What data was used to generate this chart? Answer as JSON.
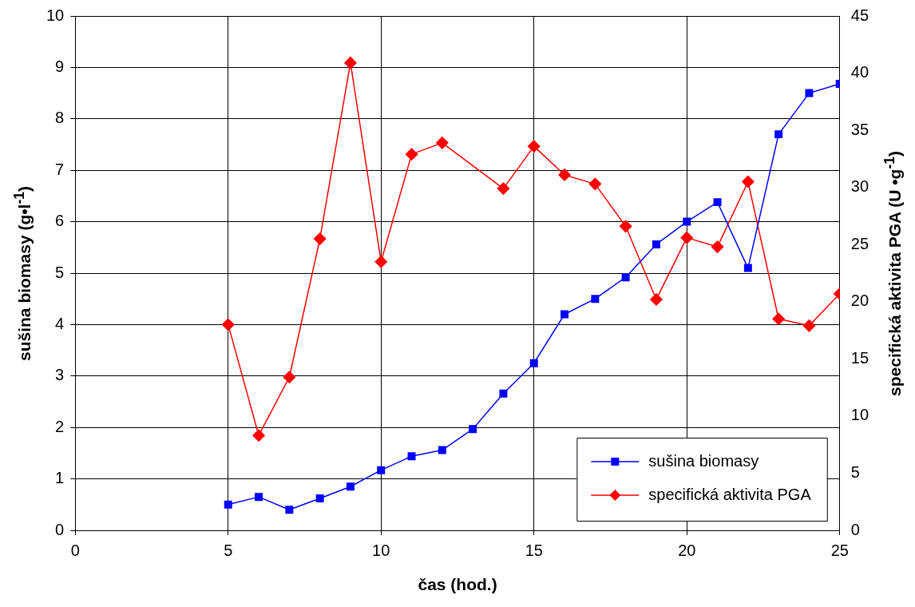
{
  "chart_data": {
    "type": "line",
    "xlabel": "čas (hod.)",
    "ylabel": "sušina biomasy (g•l$^{-1}$)",
    "y2label": "specifická aktivita PGA (U •g$^{-1}$)",
    "xlim": [
      0,
      25
    ],
    "xticks": [
      0,
      5,
      10,
      15,
      20,
      25
    ],
    "ylim": [
      0,
      10
    ],
    "yticks": [
      0,
      1,
      2,
      3,
      4,
      5,
      6,
      7,
      8,
      9,
      10
    ],
    "y2lim": [
      0,
      45
    ],
    "y2ticks": [
      0,
      5,
      10,
      15,
      20,
      25,
      30,
      35,
      40,
      45
    ],
    "grid": true,
    "legend": "bottom right",
    "line_style": "solid",
    "series": [
      {
        "name": "sušina biomasy",
        "color": "#0000ff",
        "marker": "square",
        "x": [
          5,
          6,
          7,
          8,
          9,
          10,
          11,
          12,
          13,
          14,
          15,
          16,
          17,
          18,
          19,
          20,
          21,
          22,
          23,
          24,
          25
        ],
        "values": [
          0.5,
          0.65,
          0.4,
          0.62,
          0.85,
          1.17,
          1.44,
          1.56,
          1.97,
          2.66,
          3.25,
          4.2,
          4.5,
          4.92,
          5.56,
          6.0,
          6.38,
          5.1,
          7.7,
          8.5,
          8.68
        ]
      },
      {
        "name": "specifická aktivita PGA",
        "color": "#ff0000",
        "marker": "diamond",
        "axis": "y2",
        "x": [
          5,
          6,
          7,
          8,
          9,
          10,
          11,
          12,
          14,
          15,
          16,
          17,
          18,
          19,
          20,
          21,
          22,
          23,
          24,
          25
        ],
        "values": [
          18.0,
          8.3,
          13.4,
          25.5,
          40.9,
          23.5,
          32.9,
          33.9,
          29.9,
          33.6,
          31.1,
          30.3,
          26.6,
          20.2,
          25.6,
          24.8,
          30.5,
          18.5,
          17.9,
          20.7
        ]
      }
    ]
  }
}
